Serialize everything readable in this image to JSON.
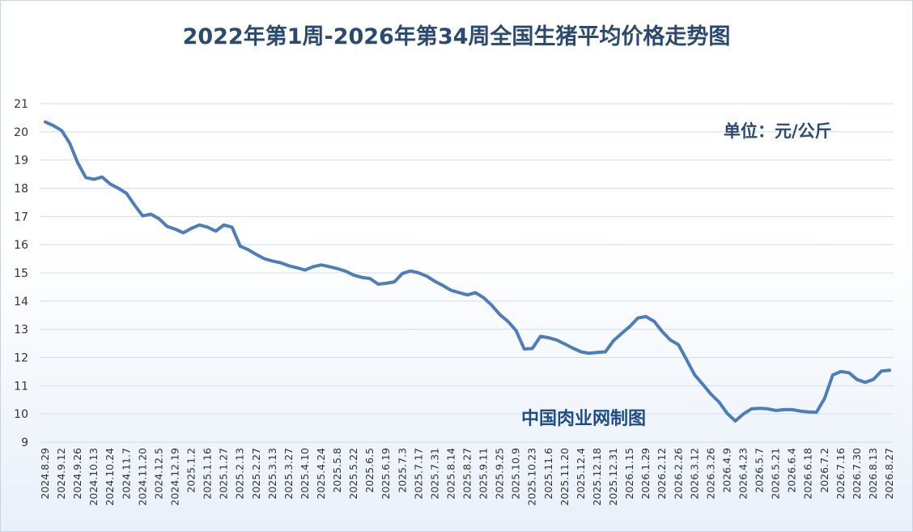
{
  "chart_data": {
    "type": "line",
    "title": "2022年第1周-2026年第34周全国生猪平均价格走势图",
    "unit_label": "单位：元/公斤",
    "source_label": "中国肉业网制图",
    "ylim": [
      9,
      21
    ],
    "yticks": [
      9,
      10,
      11,
      12,
      13,
      14,
      15,
      16,
      17,
      18,
      19,
      20,
      21
    ],
    "grid": true,
    "legend": "none",
    "line_color": "#4f7db5",
    "x_labels": [
      "2024.8.29",
      "2024.9.12",
      "2024.9.26",
      "2024.10.13",
      "2024.10.24",
      "2024.11.7",
      "2024.11.20",
      "2024.12.5",
      "2024.12.19",
      "2025.1.2",
      "2025.1.16",
      "2025.1.27",
      "2025.2.13",
      "2025.2.27",
      "2025.3.13",
      "2025.3.27",
      "2025.4.10",
      "2025.4.24",
      "2025.5.8",
      "2025.5.22",
      "2025.6.5",
      "2025.6.19",
      "2025.7.3",
      "2025.7.17",
      "2025.7.31",
      "2025.8.14",
      "2025.8.27",
      "2025.9.11",
      "2025.9.25",
      "2025.10.9",
      "2025.10.23",
      "2025.11.6",
      "2025.11.20",
      "2025.12.4",
      "2025.12.18",
      "2025.12.31",
      "2026.1.15",
      "2026.1.29",
      "2026.2.12",
      "2026.2.26",
      "2026.3.12",
      "2026.3.26",
      "2026.4.9",
      "2026.4.23",
      "2026.5.7",
      "2026.5.21",
      "2026.6.4",
      "2026.6.18",
      "2026.7.2",
      "2026.7.16",
      "2026.7.30",
      "2026.8.13",
      "2026.8.27"
    ],
    "values": [
      20.35,
      20.22,
      20.05,
      19.6,
      18.9,
      18.38,
      18.32,
      18.4,
      18.15,
      18.0,
      17.82,
      17.4,
      17.02,
      17.08,
      16.92,
      16.65,
      16.55,
      16.42,
      16.58,
      16.7,
      16.62,
      16.48,
      16.7,
      16.62,
      15.95,
      15.82,
      15.65,
      15.5,
      15.42,
      15.36,
      15.25,
      15.18,
      15.1,
      15.22,
      15.28,
      15.22,
      15.15,
      15.06,
      14.92,
      14.84,
      14.8,
      14.6,
      14.63,
      14.68,
      14.98,
      15.07,
      15.0,
      14.88,
      14.7,
      14.55,
      14.38,
      14.3,
      14.22,
      14.3,
      14.12,
      13.85,
      13.52,
      13.28,
      12.95,
      12.3,
      12.32,
      12.75,
      12.7,
      12.62,
      12.48,
      12.33,
      12.2,
      12.15,
      12.18,
      12.2,
      12.6,
      12.85,
      13.1,
      13.4,
      13.45,
      13.28,
      12.92,
      12.62,
      12.45,
      11.92,
      11.38,
      11.05,
      10.7,
      10.42,
      10.02,
      9.75,
      10.0,
      10.18,
      10.2,
      10.18,
      10.12,
      10.15,
      10.15,
      10.1,
      10.07,
      10.06,
      10.55,
      11.38,
      11.5,
      11.46,
      11.22,
      11.12,
      11.22,
      11.52,
      11.55
    ]
  }
}
